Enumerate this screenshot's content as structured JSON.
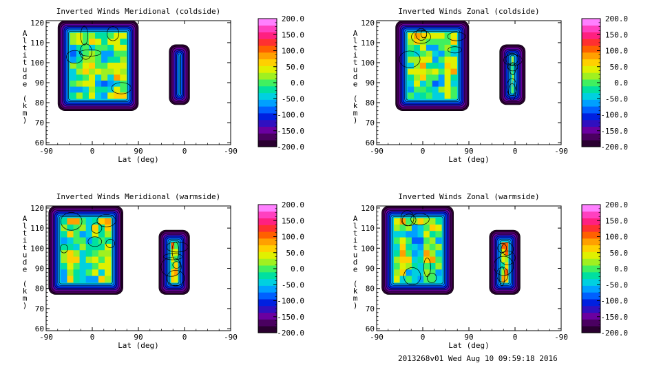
{
  "chart_data": [
    {
      "type": "heatmap",
      "title": "Inverted Winds Meridional (coldside)",
      "xlabel": "Lat (deg)",
      "ylabel": "Altitude (km)",
      "xticks": [
        "-90",
        "0",
        "90",
        "0",
        "-90"
      ],
      "yticks": [
        "60",
        "70",
        "80",
        "90",
        "100",
        "110",
        "120"
      ],
      "ylim": [
        59,
        121
      ],
      "colorbar_ticks": [
        "200.0",
        "150.0",
        "100.0",
        "50.0",
        "0.0",
        "-50.0",
        "-100.0",
        "-150.0",
        "-200.0"
      ],
      "colorbar_range": [
        -200,
        200
      ],
      "blob_left_lat": [
        -67,
        90
      ],
      "blob_left_alt": [
        76,
        121
      ],
      "blob_left_value_mean": 0,
      "blob_right_lat": [
        -10,
        30
      ],
      "blob_right_alt": [
        79,
        109
      ],
      "blob_right_value_mean": 20
    },
    {
      "type": "heatmap",
      "title": "Inverted Winds Zonal (coldside)",
      "xlabel": "Lat (deg)",
      "ylabel": "Altitude (km)",
      "xticks": [
        "-90",
        "0",
        "90",
        "0",
        "-90"
      ],
      "yticks": [
        "60",
        "70",
        "80",
        "90",
        "100",
        "110",
        "120"
      ],
      "ylim": [
        59,
        121
      ],
      "colorbar_ticks": [
        "200.0",
        "150.0",
        "100.0",
        "50.0",
        "0.0",
        "-50.0",
        "-100.0",
        "-150.0",
        "-200.0"
      ],
      "colorbar_range": [
        -200,
        200
      ],
      "blob_left_lat": [
        -53,
        90
      ],
      "blob_left_alt": [
        76,
        121
      ],
      "blob_left_value_mean": 0,
      "blob_right_lat": [
        -20,
        30
      ],
      "blob_right_alt": [
        79,
        109
      ],
      "blob_right_value_mean": 30
    },
    {
      "type": "heatmap",
      "title": "Inverted Winds Meridional (warmside)",
      "xlabel": "Lat (deg)",
      "ylabel": "Altitude (km)",
      "xticks": [
        "-90",
        "0",
        "90",
        "0",
        "-90"
      ],
      "yticks": [
        "60",
        "70",
        "80",
        "90",
        "100",
        "110",
        "120"
      ],
      "ylim": [
        59,
        121
      ],
      "colorbar_ticks": [
        "200.0",
        "150.0",
        "100.0",
        "50.0",
        "0.0",
        "-50.0",
        "-100.0",
        "-150.0",
        "-200.0"
      ],
      "colorbar_range": [
        -200,
        200
      ],
      "blob_left_lat": [
        -85,
        60
      ],
      "blob_left_alt": [
        77,
        121
      ],
      "blob_left_value_mean": 0,
      "blob_right_lat": [
        -10,
        50
      ],
      "blob_right_alt": [
        77,
        109
      ],
      "blob_right_value_mean": 30
    },
    {
      "type": "heatmap",
      "title": "Inverted Winds Zonal (warmside)",
      "xlabel": "Lat (deg)",
      "ylabel": "Altitude (km)",
      "xticks": [
        "-90",
        "0",
        "90",
        "0",
        "-90"
      ],
      "yticks": [
        "60",
        "70",
        "80",
        "90",
        "100",
        "110",
        "120"
      ],
      "ylim": [
        59,
        121
      ],
      "colorbar_ticks": [
        "200.0",
        "150.0",
        "100.0",
        "50.0",
        "0.0",
        "-50.0",
        "-100.0",
        "-150.0",
        "-200.0"
      ],
      "colorbar_range": [
        -200,
        200
      ],
      "blob_left_lat": [
        -80,
        60
      ],
      "blob_left_alt": [
        77,
        121
      ],
      "blob_left_value_mean": 0,
      "blob_right_lat": [
        -10,
        50
      ],
      "blob_right_alt": [
        77,
        109
      ],
      "blob_right_value_mean": 40
    }
  ],
  "footer": "2013268v01 Wed Aug 10 09:59:18 2016",
  "colorscale": [
    "#2a0030",
    "#4a0060",
    "#6a00a0",
    "#3010c0",
    "#0020e0",
    "#0060ff",
    "#00a0ff",
    "#00d0e0",
    "#00e0a0",
    "#40f060",
    "#a0f020",
    "#e0f000",
    "#ffd000",
    "#ffa000",
    "#ff6000",
    "#ff3030",
    "#ff2080",
    "#ff40c0",
    "#ff80ff"
  ]
}
